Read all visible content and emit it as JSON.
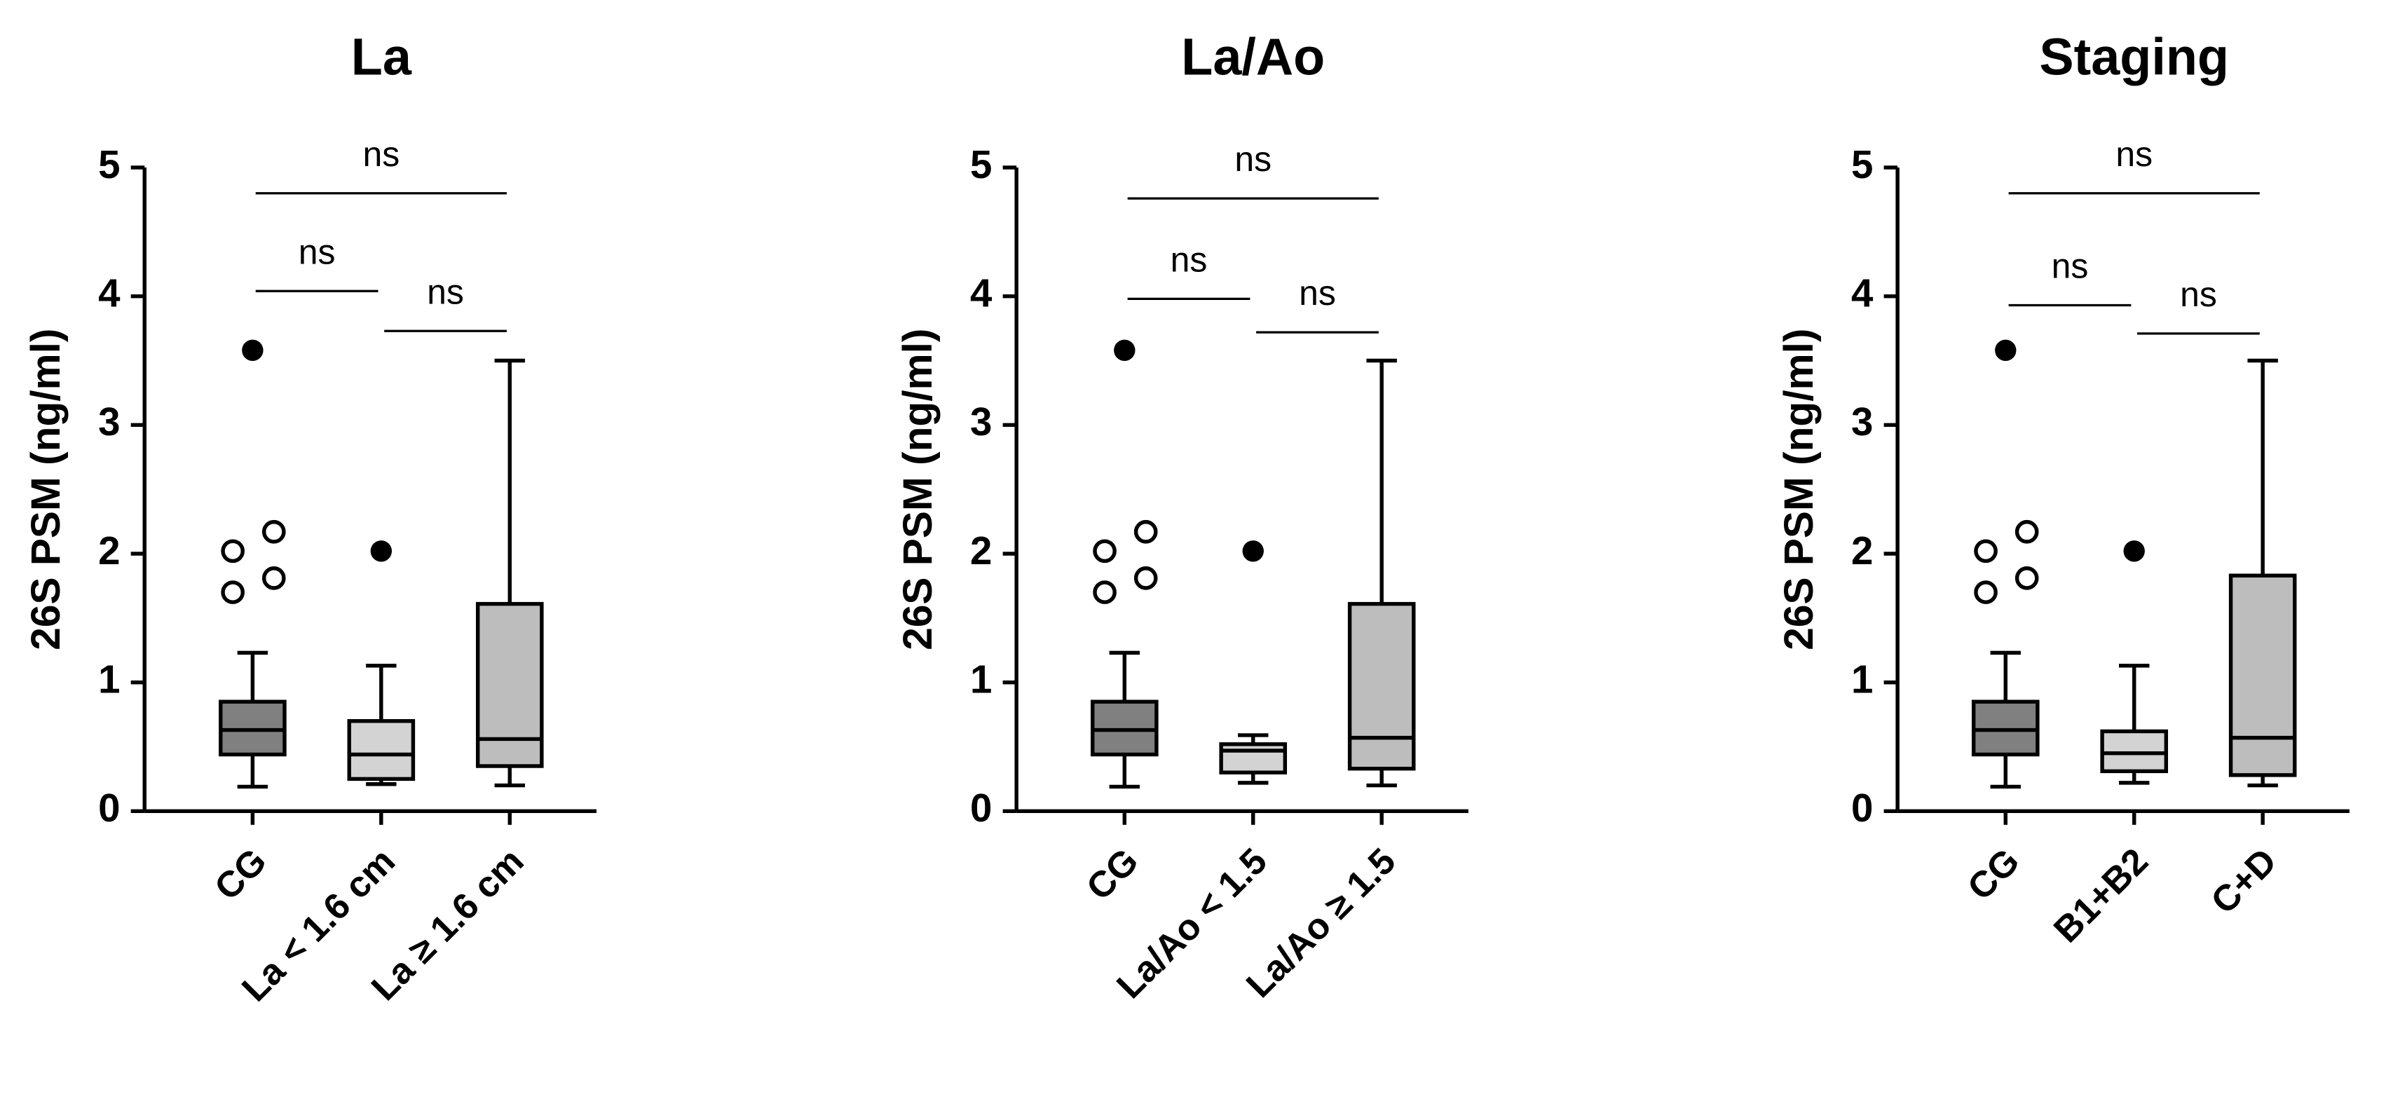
{
  "chart_data": [
    {
      "type": "box",
      "title": "La",
      "y_label": "26S PSM (ng/ml)",
      "categories": [
        "CG",
        "La < 1.6 cm",
        "La ≥ 1.6 cm"
      ],
      "ylim": [
        0,
        5
      ],
      "yticks": [
        0,
        1,
        2,
        3,
        4,
        5
      ],
      "boxes": [
        {
          "color": "#808080",
          "low": 0.19,
          "q1": 0.44,
          "median": 0.63,
          "q3": 0.85,
          "high": 1.23,
          "outliers": [
            1.7,
            2.02,
            2.17,
            1.81
          ],
          "extremes": [
            3.58
          ]
        },
        {
          "color": "#d3d3d3",
          "low": 0.21,
          "q1": 0.25,
          "median": 0.44,
          "q3": 0.7,
          "high": 1.13,
          "outliers": [],
          "extremes": [
            2.02
          ]
        },
        {
          "color": "#bdbdbd",
          "low": 0.2,
          "q1": 0.35,
          "median": 0.56,
          "q3": 1.61,
          "high": 3.5,
          "outliers": [],
          "extremes": []
        }
      ],
      "annotations": [
        {
          "label": "ns",
          "from": 0,
          "to": 2,
          "y": 4.8
        },
        {
          "label": "ns",
          "from": 0,
          "to": 1,
          "y": 4.04
        },
        {
          "label": "ns",
          "from": 1,
          "to": 2,
          "y": 3.73
        }
      ]
    },
    {
      "type": "box",
      "title": "La/Ao",
      "y_label": "26S PSM (ng/ml)",
      "categories": [
        "CG",
        "La/Ao < 1.5",
        "La/Ao ≥ 1.5"
      ],
      "ylim": [
        0,
        5
      ],
      "yticks": [
        0,
        1,
        2,
        3,
        4,
        5
      ],
      "boxes": [
        {
          "color": "#808080",
          "low": 0.19,
          "q1": 0.44,
          "median": 0.63,
          "q3": 0.85,
          "high": 1.23,
          "outliers": [
            1.7,
            2.02,
            2.17,
            1.81
          ],
          "extremes": [
            3.58
          ]
        },
        {
          "color": "#d3d3d3",
          "low": 0.22,
          "q1": 0.3,
          "median": 0.47,
          "q3": 0.52,
          "high": 0.59,
          "outliers": [],
          "extremes": [
            2.02
          ]
        },
        {
          "color": "#bdbdbd",
          "low": 0.2,
          "q1": 0.33,
          "median": 0.57,
          "q3": 1.61,
          "high": 3.5,
          "outliers": [],
          "extremes": []
        }
      ],
      "annotations": [
        {
          "label": "ns",
          "from": 0,
          "to": 2,
          "y": 4.76
        },
        {
          "label": "ns",
          "from": 0,
          "to": 1,
          "y": 3.98
        },
        {
          "label": "ns",
          "from": 1,
          "to": 2,
          "y": 3.72
        }
      ]
    },
    {
      "type": "box",
      "title": "Staging",
      "y_label": "26S PSM (ng/ml)",
      "categories": [
        "CG",
        "B1+B2",
        "C+D"
      ],
      "ylim": [
        0,
        5
      ],
      "yticks": [
        0,
        1,
        2,
        3,
        4,
        5
      ],
      "boxes": [
        {
          "color": "#808080",
          "low": 0.19,
          "q1": 0.44,
          "median": 0.63,
          "q3": 0.85,
          "high": 1.23,
          "outliers": [
            1.7,
            2.02,
            2.17,
            1.81
          ],
          "extremes": [
            3.58
          ]
        },
        {
          "color": "#d3d3d3",
          "low": 0.22,
          "q1": 0.31,
          "median": 0.45,
          "q3": 0.62,
          "high": 1.13,
          "outliers": [],
          "extremes": [
            2.02
          ]
        },
        {
          "color": "#bdbdbd",
          "low": 0.2,
          "q1": 0.28,
          "median": 0.57,
          "q3": 1.83,
          "high": 3.5,
          "outliers": [],
          "extremes": []
        }
      ],
      "annotations": [
        {
          "label": "ns",
          "from": 0,
          "to": 2,
          "y": 4.8
        },
        {
          "label": "ns",
          "from": 0,
          "to": 1,
          "y": 3.93
        },
        {
          "label": "ns",
          "from": 1,
          "to": 2,
          "y": 3.71
        }
      ]
    }
  ]
}
